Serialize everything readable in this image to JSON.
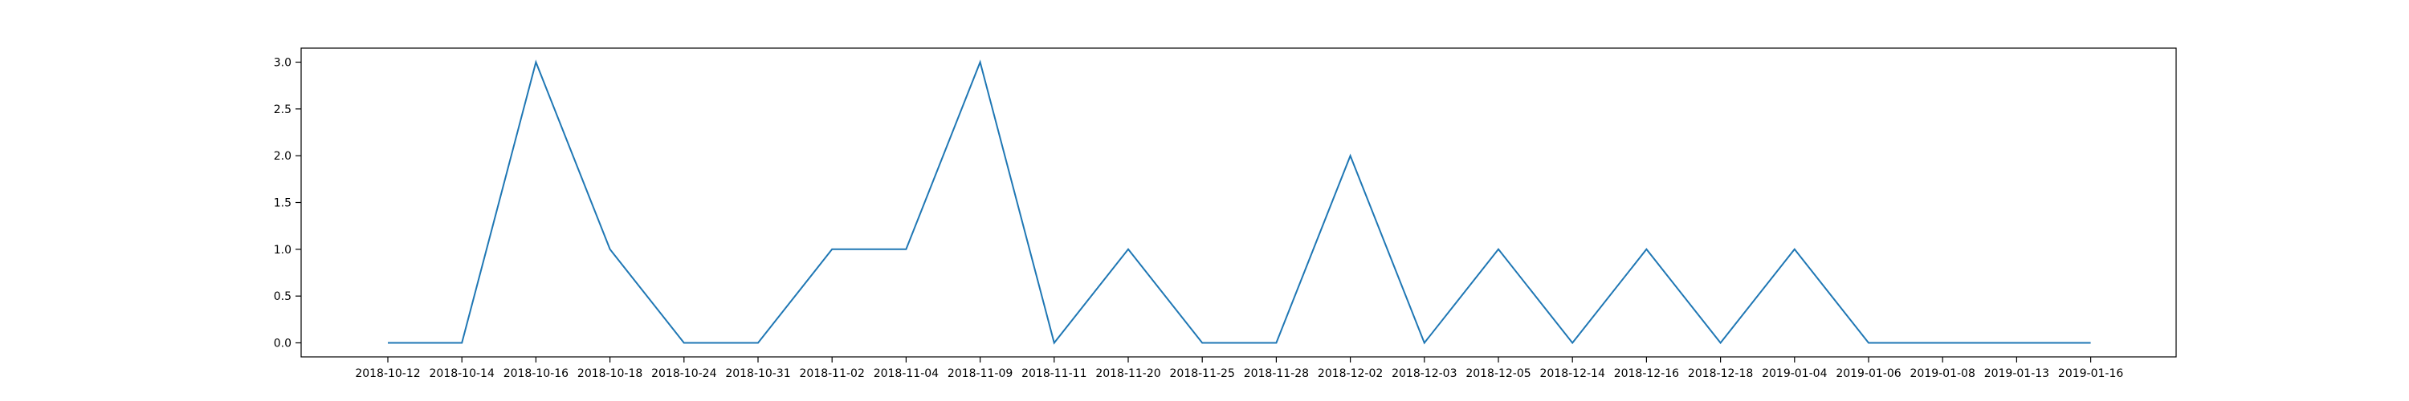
{
  "chart_data": {
    "type": "line",
    "categories": [
      "2018-10-12",
      "2018-10-14",
      "2018-10-16",
      "2018-10-18",
      "2018-10-24",
      "2018-10-31",
      "2018-11-02",
      "2018-11-04",
      "2018-11-09",
      "2018-11-11",
      "2018-11-20",
      "2018-11-25",
      "2018-11-28",
      "2018-12-02",
      "2018-12-03",
      "2018-12-05",
      "2018-12-14",
      "2018-12-16",
      "2018-12-18",
      "2019-01-04",
      "2019-01-06",
      "2019-01-08",
      "2019-01-13",
      "2019-01-16"
    ],
    "series": [
      {
        "values": [
          0,
          0,
          3,
          1,
          0,
          0,
          1,
          1,
          3,
          0,
          1,
          0,
          0,
          2,
          0,
          1,
          0,
          1,
          0,
          1,
          0,
          0,
          0,
          0
        ]
      }
    ],
    "ylim": [
      -0.15,
      3.15
    ],
    "yticks": [
      "0.0",
      "0.5",
      "1.0",
      "1.5",
      "2.0",
      "2.5",
      "3.0"
    ],
    "xlabel": "",
    "ylabel": "",
    "title": "",
    "grid": false,
    "line_color": "#1f77b4"
  }
}
